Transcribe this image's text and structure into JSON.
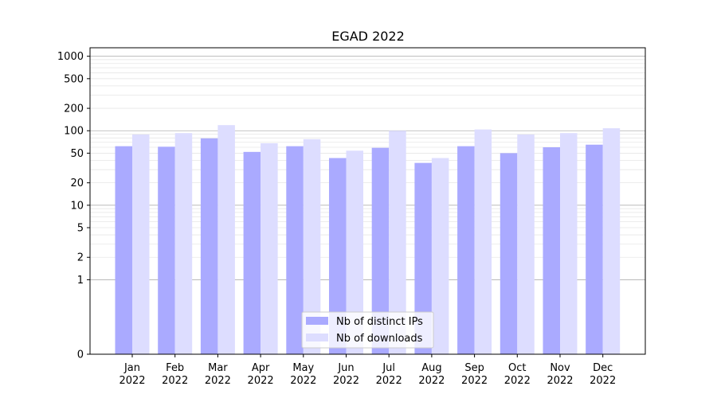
{
  "chart_data": {
    "type": "bar",
    "title": "EGAD 2022",
    "xlabel": "",
    "ylabel": "",
    "yscale": "symlog",
    "ylim": [
      0,
      1300
    ],
    "grid": true,
    "legend_position": "bottom-center",
    "categories": [
      {
        "month": "Jan",
        "year": "2022"
      },
      {
        "month": "Feb",
        "year": "2022"
      },
      {
        "month": "Mar",
        "year": "2022"
      },
      {
        "month": "Apr",
        "year": "2022"
      },
      {
        "month": "May",
        "year": "2022"
      },
      {
        "month": "Jun",
        "year": "2022"
      },
      {
        "month": "Jul",
        "year": "2022"
      },
      {
        "month": "Aug",
        "year": "2022"
      },
      {
        "month": "Sep",
        "year": "2022"
      },
      {
        "month": "Oct",
        "year": "2022"
      },
      {
        "month": "Nov",
        "year": "2022"
      },
      {
        "month": "Dec",
        "year": "2022"
      }
    ],
    "yticks": [
      0,
      1,
      2,
      5,
      10,
      20,
      50,
      100,
      200,
      500,
      1000
    ],
    "ytick_labels": [
      "0",
      "1",
      "2",
      "5",
      "10",
      "20",
      "50",
      "100",
      "200",
      "500",
      "1000"
    ],
    "series": [
      {
        "name": "Nb of distinct IPs",
        "color": "#aaaaff",
        "values": [
          62,
          61,
          79,
          52,
          62,
          43,
          59,
          37,
          62,
          50,
          60,
          65
        ]
      },
      {
        "name": "Nb of downloads",
        "color": "#ddddff",
        "values": [
          89,
          93,
          119,
          68,
          77,
          54,
          100,
          43,
          104,
          89,
          93,
          108
        ]
      }
    ]
  }
}
